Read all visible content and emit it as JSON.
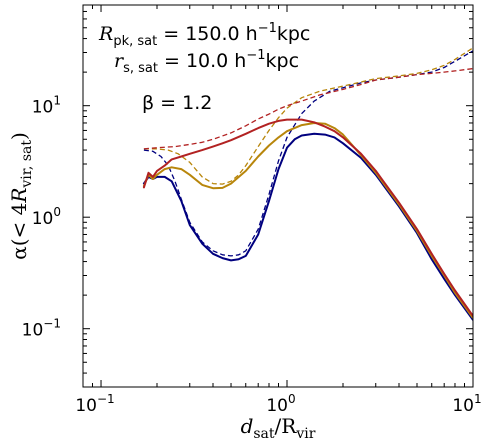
{
  "chart_data": {
    "type": "line",
    "xscale": "log",
    "yscale": "log",
    "xlim": [
      0.08,
      10
    ],
    "ylim": [
      0.03,
      80
    ],
    "xlabel_html": [
      "d",
      "sat",
      "/R",
      "vir"
    ],
    "ylabel_parts": [
      "α(< 4",
      "R",
      "vir, sat",
      ")"
    ],
    "x_ticks": [
      {
        "value": 0.1,
        "base": "10",
        "exp": "−1"
      },
      {
        "value": 1,
        "base": "10",
        "exp": "0"
      },
      {
        "value": 10,
        "base": "10",
        "exp": "1"
      }
    ],
    "y_ticks": [
      {
        "value": 0.1,
        "base": "10",
        "exp": "−1"
      },
      {
        "value": 1,
        "base": "10",
        "exp": "0"
      },
      {
        "value": 10,
        "base": "10",
        "exp": "1"
      }
    ],
    "annotations": {
      "r_pk_label": "R",
      "r_pk_sub": "pk, sat",
      "r_pk_value": " = 150.0 h",
      "r_pk_exp": "−1",
      "r_pk_unit": "kpc",
      "r_s_label": "r",
      "r_s_sub": "s, sat",
      "r_s_value": " = 10.0 h",
      "r_s_exp": "−1",
      "r_s_unit": "kpc",
      "beta_text": "β = 1.2"
    },
    "series": [
      {
        "color": "#00007f",
        "style": "solid",
        "width": 2,
        "x": [
          0.17,
          0.18,
          0.19,
          0.2,
          0.22,
          0.24,
          0.27,
          0.3,
          0.35,
          0.4,
          0.45,
          0.5,
          0.55,
          0.6,
          0.7,
          0.8,
          0.9,
          1.0,
          1.1,
          1.2,
          1.4,
          1.6,
          1.8,
          2.0,
          2.5,
          3.0,
          4.0,
          5.0,
          6.0,
          7.0,
          8.0,
          10.0
        ],
        "y": [
          2.0,
          2.3,
          2.2,
          2.3,
          2.3,
          2.1,
          1.4,
          0.85,
          0.58,
          0.47,
          0.43,
          0.41,
          0.42,
          0.45,
          0.7,
          1.4,
          2.7,
          4.2,
          5.0,
          5.4,
          5.6,
          5.5,
          5.2,
          4.6,
          3.4,
          2.4,
          1.25,
          0.72,
          0.42,
          0.28,
          0.2,
          0.12
        ]
      },
      {
        "color": "#00007f",
        "style": "dashed",
        "width": 1.3,
        "x": [
          0.17,
          0.19,
          0.21,
          0.23,
          0.25,
          0.27,
          0.3,
          0.35,
          0.4,
          0.45,
          0.5,
          0.55,
          0.6,
          0.7,
          0.8,
          0.9,
          1.0,
          1.2,
          1.4,
          1.7,
          2.0,
          2.5,
          3.0,
          4.0,
          5.0,
          6.0,
          7.0,
          8.0,
          10.0
        ],
        "y": [
          4.0,
          3.9,
          3.5,
          2.9,
          2.1,
          1.45,
          0.9,
          0.6,
          0.5,
          0.46,
          0.45,
          0.46,
          0.5,
          0.78,
          1.6,
          3.2,
          5.2,
          8.5,
          11.0,
          13.5,
          14.5,
          16.0,
          17.0,
          18.0,
          19.0,
          20.0,
          22.0,
          25.0,
          31.0
        ]
      },
      {
        "color": "#b8860b",
        "style": "solid",
        "width": 2,
        "x": [
          0.17,
          0.18,
          0.19,
          0.2,
          0.22,
          0.24,
          0.27,
          0.3,
          0.35,
          0.4,
          0.45,
          0.5,
          0.6,
          0.7,
          0.8,
          0.9,
          1.0,
          1.2,
          1.4,
          1.6,
          1.8,
          2.0,
          2.5,
          3.0,
          4.0,
          5.0,
          6.0,
          7.0,
          8.0,
          10.0
        ],
        "y": [
          1.9,
          2.4,
          2.2,
          2.4,
          2.7,
          2.8,
          2.7,
          2.4,
          1.95,
          1.82,
          1.83,
          2.0,
          2.6,
          3.5,
          4.4,
          5.2,
          5.9,
          6.7,
          7.0,
          6.9,
          6.3,
          5.5,
          3.6,
          2.5,
          1.3,
          0.75,
          0.45,
          0.3,
          0.21,
          0.125
        ]
      },
      {
        "color": "#b8860b",
        "style": "dashed",
        "width": 1.3,
        "x": [
          0.17,
          0.2,
          0.23,
          0.26,
          0.3,
          0.35,
          0.4,
          0.45,
          0.5,
          0.55,
          0.6,
          0.7,
          0.8,
          0.9,
          1.0,
          1.2,
          1.5,
          2.0,
          2.5,
          3.0,
          4.0,
          5.0,
          6.0,
          7.0,
          8.0,
          10.0
        ],
        "y": [
          4.1,
          4.1,
          4.0,
          3.7,
          3.1,
          2.3,
          2.0,
          1.98,
          2.1,
          2.4,
          2.9,
          4.3,
          6.0,
          7.8,
          9.5,
          11.8,
          13.5,
          15.0,
          16.3,
          17.5,
          18.5,
          19.5,
          21.0,
          23.0,
          26.0,
          33.0
        ]
      },
      {
        "color": "#b22222",
        "style": "solid",
        "width": 2,
        "x": [
          0.17,
          0.18,
          0.19,
          0.2,
          0.22,
          0.24,
          0.27,
          0.3,
          0.35,
          0.4,
          0.45,
          0.5,
          0.6,
          0.7,
          0.8,
          0.9,
          1.0,
          1.2,
          1.4,
          1.6,
          1.8,
          2.0,
          2.5,
          3.0,
          4.0,
          5.0,
          6.0,
          7.0,
          8.0,
          10.0
        ],
        "y": [
          1.85,
          2.5,
          2.3,
          2.6,
          2.9,
          3.3,
          3.5,
          3.7,
          4.0,
          4.3,
          4.6,
          4.9,
          5.6,
          6.3,
          6.9,
          7.3,
          7.5,
          7.5,
          7.1,
          6.5,
          5.9,
          5.2,
          3.7,
          2.6,
          1.35,
          0.78,
          0.47,
          0.31,
          0.22,
          0.13
        ]
      },
      {
        "color": "#b22222",
        "style": "dashed",
        "width": 1.3,
        "x": [
          0.17,
          0.2,
          0.25,
          0.3,
          0.35,
          0.4,
          0.5,
          0.6,
          0.7,
          0.8,
          0.9,
          1.0,
          1.2,
          1.5,
          2.0,
          2.5,
          3.0,
          4.0,
          5.0,
          6.0,
          7.0,
          8.0,
          10.0
        ],
        "y": [
          4.1,
          4.2,
          4.3,
          4.5,
          4.7,
          5.0,
          5.7,
          6.6,
          7.6,
          8.4,
          9.3,
          10.0,
          11.0,
          12.5,
          14.0,
          15.5,
          17.0,
          18.0,
          19.0,
          19.5,
          20.0,
          20.5,
          21.5
        ]
      }
    ]
  }
}
